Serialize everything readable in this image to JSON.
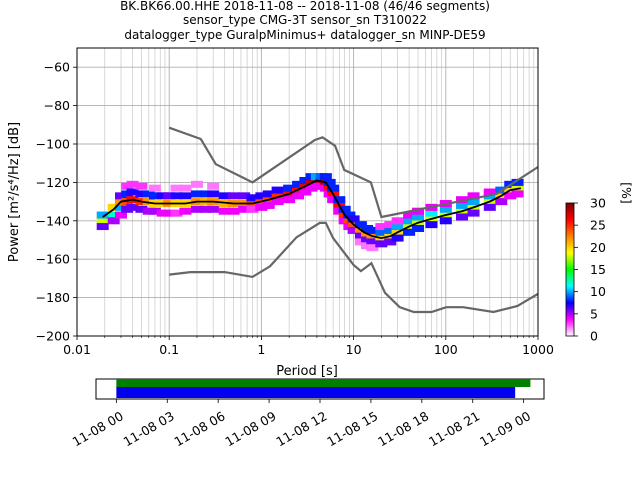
{
  "chart_data": {
    "type": "heatmap",
    "title_lines": [
      "BK.BK66.00.HHE   2018-11-08 -- 2018-11-08  (46/46 segments)",
      "sensor_type CMG-3T sensor_sn T310022",
      "datalogger_type GuralpMinimus+ datalogger_sn MINP-DE59"
    ],
    "xlabel": "Period [s]",
    "ylabel": "Power [m²/s⁴/Hz] [dB]",
    "x_scale": "log",
    "xlim": [
      0.01,
      1000
    ],
    "ylim": [
      -200,
      -50
    ],
    "x_ticks": [
      {
        "v": 0.01,
        "label": "0.01"
      },
      {
        "v": 0.1,
        "label": "0.1"
      },
      {
        "v": 1,
        "label": "1"
      },
      {
        "v": 10,
        "label": "10"
      },
      {
        "v": 100,
        "label": "100"
      },
      {
        "v": 1000,
        "label": "1000"
      }
    ],
    "y_ticks": [
      {
        "v": -60,
        "label": "−60"
      },
      {
        "v": -80,
        "label": "−80"
      },
      {
        "v": -100,
        "label": "−100"
      },
      {
        "v": -120,
        "label": "−120"
      },
      {
        "v": -140,
        "label": "−140"
      },
      {
        "v": -160,
        "label": "−160"
      },
      {
        "v": -180,
        "label": "−180"
      },
      {
        "v": -200,
        "label": "−200"
      }
    ],
    "grid": true,
    "colorbar": {
      "label": "[%]",
      "range": [
        0,
        30
      ],
      "ticks": [
        {
          "v": 0,
          "label": "0"
        },
        {
          "v": 5,
          "label": "5"
        },
        {
          "v": 10,
          "label": "10"
        },
        {
          "v": 15,
          "label": "15"
        },
        {
          "v": 20,
          "label": "20"
        },
        {
          "v": 25,
          "label": "25"
        },
        {
          "v": 30,
          "label": "30"
        }
      ],
      "colors": [
        "#ffffff",
        "#ff00ff",
        "#0000ff",
        "#00ffff",
        "#00ff00",
        "#ffff00",
        "#ff8000",
        "#ff0000",
        "#800000"
      ]
    },
    "mode_curve": [
      [
        0.019,
        -138
      ],
      [
        0.025,
        -134
      ],
      [
        0.03,
        -130
      ],
      [
        0.04,
        -129
      ],
      [
        0.05,
        -130
      ],
      [
        0.07,
        -131
      ],
      [
        0.1,
        -131
      ],
      [
        0.15,
        -131
      ],
      [
        0.2,
        -130
      ],
      [
        0.3,
        -130
      ],
      [
        0.5,
        -131
      ],
      [
        0.8,
        -131
      ],
      [
        1.2,
        -129
      ],
      [
        2,
        -126
      ],
      [
        3,
        -122
      ],
      [
        4,
        -119
      ],
      [
        5,
        -120
      ],
      [
        6,
        -126
      ],
      [
        7,
        -132
      ],
      [
        8,
        -137
      ],
      [
        10,
        -142
      ],
      [
        13,
        -146
      ],
      [
        16,
        -148
      ],
      [
        20,
        -149
      ],
      [
        25,
        -148
      ],
      [
        30,
        -146
      ],
      [
        40,
        -143
      ],
      [
        50,
        -141
      ],
      [
        70,
        -139
      ],
      [
        100,
        -137
      ],
      [
        150,
        -135
      ],
      [
        200,
        -133
      ],
      [
        300,
        -130
      ],
      [
        400,
        -127
      ],
      [
        500,
        -124
      ],
      [
        650,
        -123
      ]
    ],
    "nhnm": [
      [
        0.1,
        -91.5
      ],
      [
        0.22,
        -97.4
      ],
      [
        0.32,
        -110.5
      ],
      [
        0.8,
        -120
      ],
      [
        3.8,
        -97.9
      ],
      [
        4.6,
        -96.5
      ],
      [
        6.3,
        -101
      ],
      [
        7.9,
        -113.5
      ],
      [
        15.4,
        -120
      ],
      [
        20,
        -138
      ],
      [
        354.8,
        -126
      ],
      [
        1000,
        -112
      ]
    ],
    "nlnm": [
      [
        0.1,
        -168
      ],
      [
        0.17,
        -166.7
      ],
      [
        0.4,
        -166.7
      ],
      [
        0.8,
        -169.2
      ],
      [
        1.24,
        -163.7
      ],
      [
        2.4,
        -148.6
      ],
      [
        4.3,
        -141.1
      ],
      [
        5,
        -141.1
      ],
      [
        6,
        -149
      ],
      [
        10,
        -163
      ],
      [
        12,
        -166.2
      ],
      [
        15.6,
        -162.1
      ],
      [
        21.9,
        -177.5
      ],
      [
        31.6,
        -185
      ],
      [
        45,
        -187.5
      ],
      [
        70,
        -187.5
      ],
      [
        101,
        -185
      ],
      [
        154,
        -185
      ],
      [
        328,
        -187.5
      ],
      [
        600,
        -184.4
      ],
      [
        1000,
        -178
      ]
    ],
    "heatmap_cells": [
      [
        0.019,
        -140,
        18
      ],
      [
        0.019,
        -137,
        10
      ],
      [
        0.019,
        -143,
        6
      ],
      [
        0.025,
        -137,
        12
      ],
      [
        0.025,
        -133,
        20
      ],
      [
        0.025,
        -140,
        5
      ],
      [
        0.03,
        -133,
        10
      ],
      [
        0.03,
        -130,
        22
      ],
      [
        0.03,
        -127,
        6
      ],
      [
        0.03,
        -137,
        4
      ],
      [
        0.035,
        -130,
        24
      ],
      [
        0.035,
        -126,
        8
      ],
      [
        0.035,
        -122,
        3
      ],
      [
        0.035,
        -134,
        6
      ],
      [
        0.04,
        -129,
        26
      ],
      [
        0.04,
        -125,
        7
      ],
      [
        0.04,
        -133,
        6
      ],
      [
        0.04,
        -121,
        3
      ],
      [
        0.05,
        -130,
        25
      ],
      [
        0.05,
        -126,
        7
      ],
      [
        0.05,
        -134,
        6
      ],
      [
        0.05,
        -122,
        3
      ],
      [
        0.06,
        -130,
        22
      ],
      [
        0.06,
        -126,
        8
      ],
      [
        0.06,
        -135,
        5
      ],
      [
        0.07,
        -131,
        20
      ],
      [
        0.07,
        -127,
        8
      ],
      [
        0.07,
        -135,
        5
      ],
      [
        0.07,
        -123,
        2
      ],
      [
        0.085,
        -131,
        20
      ],
      [
        0.085,
        -127,
        7
      ],
      [
        0.085,
        -136,
        4
      ],
      [
        0.1,
        -131,
        22
      ],
      [
        0.1,
        -127,
        6
      ],
      [
        0.1,
        -136,
        4
      ],
      [
        0.12,
        -131,
        20
      ],
      [
        0.12,
        -127,
        7
      ],
      [
        0.12,
        -136,
        3
      ],
      [
        0.12,
        -123,
        2
      ],
      [
        0.15,
        -131,
        20
      ],
      [
        0.15,
        -127,
        7
      ],
      [
        0.15,
        -135,
        4
      ],
      [
        0.15,
        -123,
        2
      ],
      [
        0.2,
        -130,
        22
      ],
      [
        0.2,
        -126,
        8
      ],
      [
        0.2,
        -134,
        5
      ],
      [
        0.2,
        -121,
        2
      ],
      [
        0.25,
        -130,
        21
      ],
      [
        0.25,
        -126,
        8
      ],
      [
        0.25,
        -134,
        5
      ],
      [
        0.3,
        -130,
        22
      ],
      [
        0.3,
        -126,
        7
      ],
      [
        0.3,
        -134,
        5
      ],
      [
        0.3,
        -122,
        2
      ],
      [
        0.4,
        -131,
        21
      ],
      [
        0.4,
        -127,
        7
      ],
      [
        0.4,
        -135,
        4
      ],
      [
        0.5,
        -131,
        22
      ],
      [
        0.5,
        -127,
        6
      ],
      [
        0.5,
        -135,
        4
      ],
      [
        0.65,
        -131,
        22
      ],
      [
        0.65,
        -127,
        6
      ],
      [
        0.65,
        -134,
        4
      ],
      [
        0.8,
        -131,
        24
      ],
      [
        0.8,
        -128,
        7
      ],
      [
        0.8,
        -134,
        3
      ],
      [
        1.0,
        -130,
        24
      ],
      [
        1.0,
        -127,
        7
      ],
      [
        1.0,
        -133,
        4
      ],
      [
        1.2,
        -129,
        24
      ],
      [
        1.2,
        -126,
        7
      ],
      [
        1.2,
        -132,
        4
      ],
      [
        1.5,
        -127,
        25
      ],
      [
        1.5,
        -124,
        7
      ],
      [
        1.5,
        -130,
        4
      ],
      [
        2,
        -126,
        26
      ],
      [
        2,
        -123,
        8
      ],
      [
        2,
        -129,
        4
      ],
      [
        2.5,
        -124,
        26
      ],
      [
        2.5,
        -121,
        8
      ],
      [
        2.5,
        -127,
        4
      ],
      [
        3,
        -122,
        27
      ],
      [
        3,
        -119,
        8
      ],
      [
        3,
        -125,
        4
      ],
      [
        3.5,
        -120,
        28
      ],
      [
        3.5,
        -117,
        8
      ],
      [
        3.5,
        -123,
        4
      ],
      [
        4,
        -119,
        29
      ],
      [
        4,
        -117,
        10
      ],
      [
        4,
        -122,
        4
      ],
      [
        4.5,
        -119,
        29
      ],
      [
        4.5,
        -117,
        9
      ],
      [
        4.5,
        -122,
        4
      ],
      [
        5,
        -120,
        28
      ],
      [
        5,
        -117,
        8
      ],
      [
        5,
        -123,
        4
      ],
      [
        5.5,
        -123,
        26
      ],
      [
        5.5,
        -120,
        8
      ],
      [
        5.5,
        -126,
        4
      ],
      [
        6,
        -126,
        26
      ],
      [
        6,
        -123,
        8
      ],
      [
        6,
        -129,
        4
      ],
      [
        7,
        -132,
        26
      ],
      [
        7,
        -129,
        8
      ],
      [
        7,
        -135,
        4
      ],
      [
        8,
        -137,
        25
      ],
      [
        8,
        -134,
        8
      ],
      [
        8,
        -140,
        4
      ],
      [
        9,
        -140,
        24
      ],
      [
        9,
        -137,
        8
      ],
      [
        9,
        -143,
        4
      ],
      [
        10,
        -142,
        24
      ],
      [
        10,
        -139,
        7
      ],
      [
        10,
        -145,
        5
      ],
      [
        12,
        -145,
        22
      ],
      [
        12,
        -142,
        8
      ],
      [
        12,
        -148,
        6
      ],
      [
        12,
        -151,
        2
      ],
      [
        14,
        -147,
        22
      ],
      [
        14,
        -144,
        8
      ],
      [
        14,
        -150,
        6
      ],
      [
        14,
        -153,
        2
      ],
      [
        16,
        -148,
        22
      ],
      [
        16,
        -145,
        8
      ],
      [
        16,
        -151,
        6
      ],
      [
        16,
        -154,
        2
      ],
      [
        20,
        -149,
        20
      ],
      [
        20,
        -146,
        9
      ],
      [
        20,
        -152,
        6
      ],
      [
        20,
        -143,
        3
      ],
      [
        25,
        -148,
        20
      ],
      [
        25,
        -145,
        9
      ],
      [
        25,
        -151,
        6
      ],
      [
        25,
        -142,
        3
      ],
      [
        30,
        -146,
        20
      ],
      [
        30,
        -143,
        10
      ],
      [
        30,
        -149,
        7
      ],
      [
        30,
        -140,
        3
      ],
      [
        40,
        -143,
        18
      ],
      [
        40,
        -140,
        10
      ],
      [
        40,
        -146,
        8
      ],
      [
        40,
        -137,
        4
      ],
      [
        50,
        -141,
        18
      ],
      [
        50,
        -138,
        10
      ],
      [
        50,
        -144,
        8
      ],
      [
        50,
        -135,
        4
      ],
      [
        70,
        -139,
        18
      ],
      [
        70,
        -136,
        11
      ],
      [
        70,
        -142,
        7
      ],
      [
        70,
        -133,
        4
      ],
      [
        100,
        -137,
        18
      ],
      [
        100,
        -134,
        10
      ],
      [
        100,
        -140,
        7
      ],
      [
        100,
        -131,
        4
      ],
      [
        150,
        -135,
        18
      ],
      [
        150,
        -132,
        10
      ],
      [
        150,
        -138,
        6
      ],
      [
        150,
        -129,
        4
      ],
      [
        200,
        -133,
        18
      ],
      [
        200,
        -130,
        10
      ],
      [
        200,
        -136,
        6
      ],
      [
        200,
        -127,
        4
      ],
      [
        300,
        -130,
        18
      ],
      [
        300,
        -127,
        10
      ],
      [
        300,
        -133,
        6
      ],
      [
        300,
        -125,
        4
      ],
      [
        400,
        -127,
        20
      ],
      [
        400,
        -124,
        9
      ],
      [
        400,
        -130,
        5
      ],
      [
        500,
        -124,
        20
      ],
      [
        500,
        -121,
        8
      ],
      [
        500,
        -127,
        4
      ],
      [
        600,
        -123,
        18
      ],
      [
        600,
        -120,
        8
      ],
      [
        600,
        -126,
        4
      ]
    ],
    "timeline": {
      "tick_labels": [
        "11-08 00",
        "11-08 03",
        "11-08 06",
        "11-08 09",
        "11-08 12",
        "11-08 15",
        "11-08 18",
        "11-08 21",
        "11-09 00"
      ],
      "start_hours": -1.2,
      "end_hours": 25.2,
      "data_bar": {
        "from": 0,
        "to": 24.4,
        "color": "#008000"
      },
      "psd_bar": {
        "from": 0,
        "to": 23.5,
        "color": "#0000ee"
      }
    }
  }
}
